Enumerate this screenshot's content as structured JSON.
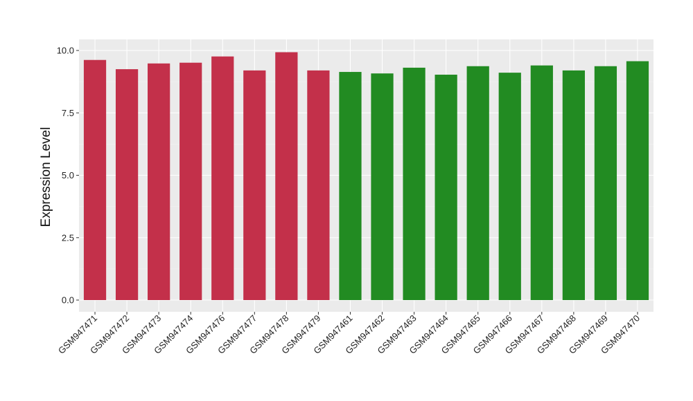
{
  "chart_data": {
    "type": "bar",
    "title": "",
    "xlabel": "",
    "ylabel": "Expression Level",
    "ylim": [
      0,
      10.5
    ],
    "yticks": [
      0.0,
      2.5,
      5.0,
      7.5,
      10.0
    ],
    "ytick_labels": [
      "0.0",
      "2.5",
      "5.0",
      "7.5",
      "10.0"
    ],
    "grid": true,
    "legend": "none",
    "categories": [
      "GSM947471",
      "GSM947472",
      "GSM947473",
      "GSM947474",
      "GSM947476",
      "GSM947477",
      "GSM947478",
      "GSM947479",
      "GSM947461",
      "GSM947462",
      "GSM947463",
      "GSM947464",
      "GSM947465",
      "GSM947466",
      "GSM947467",
      "GSM947468",
      "GSM947469",
      "GSM947470"
    ],
    "values": [
      9.62,
      9.25,
      9.48,
      9.51,
      9.76,
      9.2,
      9.93,
      9.2,
      9.14,
      9.08,
      9.31,
      9.03,
      9.37,
      9.11,
      9.4,
      9.2,
      9.37,
      9.57
    ],
    "bar_colors": [
      "#C3304A",
      "#C3304A",
      "#C3304A",
      "#C3304A",
      "#C3304A",
      "#C3304A",
      "#C3304A",
      "#C3304A",
      "#228B22",
      "#228B22",
      "#228B22",
      "#228B22",
      "#228B22",
      "#228B22",
      "#228B22",
      "#228B22",
      "#228B22",
      "#228B22"
    ],
    "colors": {
      "panel_background": "#EBEBEB",
      "grid_major": "#FFFFFF",
      "grid_minor": "#F5F5F5",
      "tick_mark": "#333333"
    }
  }
}
